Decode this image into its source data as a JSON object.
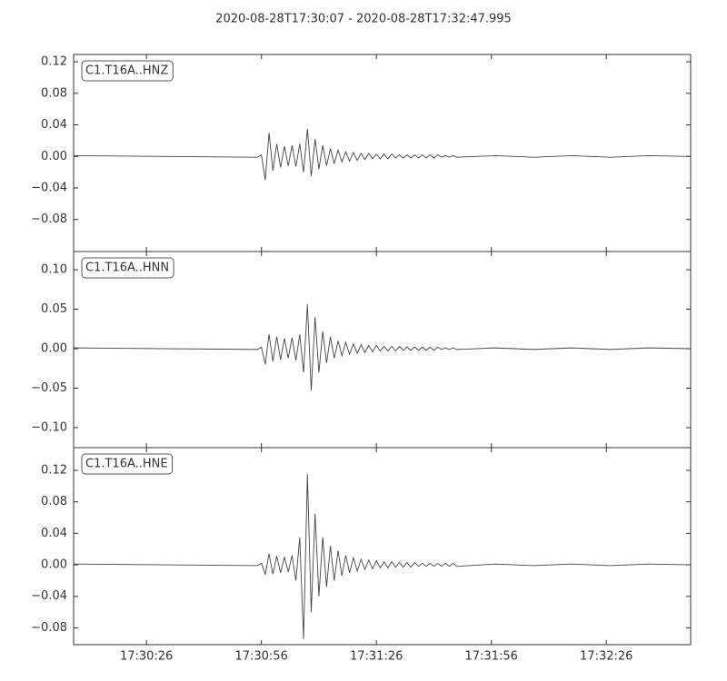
{
  "title": "2020-08-28T17:30:07  -  2020-08-28T17:32:47.995",
  "chart_data": [
    {
      "type": "line",
      "label": "C1.T16A..HNZ",
      "color": "#444444",
      "x": [
        0,
        48,
        49,
        50,
        51,
        52,
        53,
        54,
        55,
        56,
        57,
        58,
        59,
        60,
        61,
        62,
        63,
        64,
        65,
        66,
        67,
        68,
        69,
        70,
        71,
        72,
        73,
        74,
        75,
        76,
        77,
        78,
        79,
        80,
        81,
        82,
        83,
        84,
        85,
        86,
        87,
        88,
        89,
        90,
        91,
        92,
        93,
        94,
        95,
        96,
        97,
        98,
        99,
        100,
        110,
        120,
        130,
        140,
        150,
        160.995
      ],
      "values": [
        0.001,
        -0.001,
        0.002,
        -0.03,
        0.03,
        -0.018,
        0.016,
        -0.014,
        0.013,
        -0.012,
        0.014,
        -0.013,
        0.016,
        -0.02,
        0.035,
        -0.025,
        0.022,
        -0.016,
        0.014,
        -0.012,
        0.01,
        -0.009,
        0.008,
        -0.007,
        0.006,
        -0.006,
        0.005,
        -0.005,
        0.004,
        -0.004,
        0.004,
        -0.003,
        0.003,
        -0.003,
        0.003,
        -0.003,
        0.003,
        -0.002,
        0.002,
        -0.002,
        0.002,
        -0.002,
        0.002,
        -0.002,
        0.002,
        -0.002,
        0.002,
        -0.002,
        0.002,
        -0.001,
        0.001,
        -0.001,
        0.001,
        -0.001,
        0.001,
        -0.001,
        0.001,
        -0.001,
        0.001,
        0
      ],
      "xlim": [
        0,
        160.995
      ],
      "ylim": [
        -0.1206,
        0.1293
      ],
      "yticks": [
        0.12,
        0.08,
        0.04,
        {
          "value": 0,
          "label": "0.00"
        },
        {
          "value": -0.04,
          "label": "−0.04"
        },
        {
          "value": -0.08,
          "label": "−0.08"
        }
      ]
    },
    {
      "type": "line",
      "label": "C1.T16A..HNN",
      "color": "#444444",
      "x": [
        0,
        48,
        49,
        50,
        51,
        52,
        53,
        54,
        55,
        56,
        57,
        58,
        59,
        60,
        61,
        62,
        63,
        64,
        65,
        66,
        67,
        68,
        69,
        70,
        71,
        72,
        73,
        74,
        75,
        76,
        77,
        78,
        79,
        80,
        81,
        82,
        83,
        84,
        85,
        86,
        87,
        88,
        89,
        90,
        91,
        92,
        93,
        94,
        95,
        96,
        97,
        98,
        99,
        100,
        110,
        120,
        130,
        140,
        150,
        160.995
      ],
      "values": [
        0.001,
        -0.001,
        0.002,
        -0.02,
        0.018,
        -0.016,
        0.015,
        -0.014,
        0.013,
        -0.012,
        0.014,
        -0.015,
        0.018,
        -0.03,
        0.056,
        -0.053,
        0.04,
        -0.03,
        0.022,
        -0.018,
        0.015,
        -0.012,
        0.01,
        -0.009,
        0.008,
        -0.007,
        0.006,
        -0.006,
        0.005,
        -0.005,
        0.004,
        -0.004,
        0.004,
        -0.003,
        0.003,
        -0.003,
        0.003,
        -0.003,
        0.003,
        -0.002,
        0.002,
        -0.002,
        0.002,
        -0.002,
        0.002,
        -0.002,
        0.002,
        -0.002,
        0.002,
        -0.001,
        0.001,
        -0.001,
        0.001,
        -0.001,
        0.001,
        -0.001,
        0.001,
        -0.001,
        0.001,
        0
      ],
      "xlim": [
        0,
        160.995
      ],
      "ylim": [
        -0.1253,
        0.123
      ],
      "yticks": [
        {
          "value": 0.1,
          "label": "0.10"
        },
        0.05,
        {
          "value": 0,
          "label": "0.00"
        },
        {
          "value": -0.05,
          "label": "−0.05"
        },
        {
          "value": -0.1,
          "label": "−0.10"
        }
      ]
    },
    {
      "type": "line",
      "label": "C1.T16A..HNE",
      "color": "#444444",
      "x": [
        0,
        48,
        49,
        50,
        51,
        52,
        53,
        54,
        55,
        56,
        57,
        58,
        59,
        60,
        61,
        62,
        63,
        64,
        65,
        66,
        67,
        68,
        69,
        70,
        71,
        72,
        73,
        74,
        75,
        76,
        77,
        78,
        79,
        80,
        81,
        82,
        83,
        84,
        85,
        86,
        87,
        88,
        89,
        90,
        91,
        92,
        93,
        94,
        95,
        96,
        97,
        98,
        99,
        100,
        110,
        120,
        130,
        140,
        150,
        160.995
      ],
      "values": [
        0.001,
        -0.001,
        0.002,
        -0.012,
        0.014,
        -0.012,
        0.011,
        -0.01,
        0.01,
        -0.009,
        0.012,
        -0.02,
        0.035,
        -0.094,
        0.115,
        -0.06,
        0.065,
        -0.04,
        0.035,
        -0.028,
        0.024,
        -0.02,
        0.018,
        -0.014,
        0.012,
        -0.01,
        0.009,
        -0.008,
        0.007,
        -0.006,
        0.006,
        -0.005,
        0.005,
        -0.004,
        0.004,
        -0.004,
        0.004,
        -0.003,
        0.003,
        -0.003,
        0.003,
        -0.003,
        0.003,
        -0.002,
        0.002,
        -0.002,
        0.002,
        -0.002,
        0.002,
        -0.002,
        0.002,
        -0.002,
        0.002,
        -0.002,
        0.001,
        -0.001,
        0.001,
        -0.001,
        0.001,
        0
      ],
      "xlim": [
        0,
        160.995
      ],
      "ylim": [
        -0.1014,
        0.1488
      ],
      "yticks": [
        0.12,
        0.08,
        0.04,
        {
          "value": 0,
          "label": "0.00"
        },
        {
          "value": -0.04,
          "label": "−0.04"
        },
        {
          "value": -0.08,
          "label": "−0.08"
        }
      ],
      "xticks": [
        {
          "value": 19,
          "label": "17:30:26"
        },
        {
          "value": 49,
          "label": "17:30:56"
        },
        {
          "value": 79,
          "label": "17:31:26"
        },
        {
          "value": 109,
          "label": "17:31:56"
        },
        {
          "value": 139,
          "label": "17:32:26"
        }
      ]
    }
  ]
}
